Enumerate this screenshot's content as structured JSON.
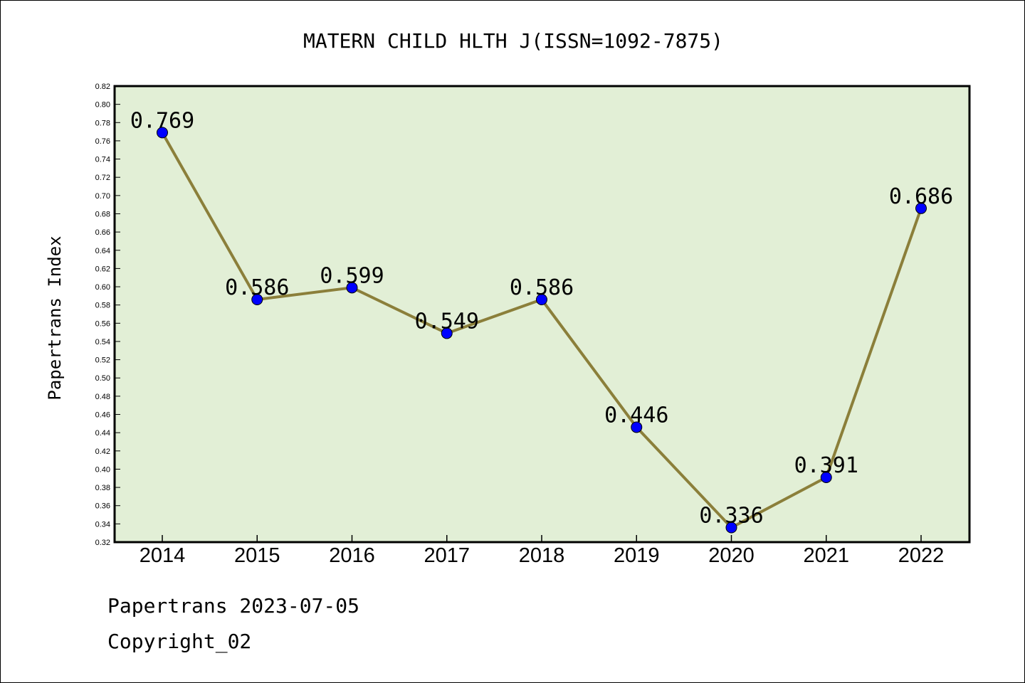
{
  "footer": {
    "line1": "Papertrans 2023-07-05",
    "line2": "Copyright_02"
  },
  "colors": {
    "plot_bg": "#e2efd6",
    "line": "#8b7f3a",
    "marker": "#0000ff"
  },
  "chart_data": {
    "type": "line",
    "title": "MATERN CHILD HLTH J(ISSN=1092-7875)",
    "xlabel": "",
    "ylabel": "Papertrans Index",
    "categories": [
      "2014",
      "2015",
      "2016",
      "2017",
      "2018",
      "2019",
      "2020",
      "2021",
      "2022"
    ],
    "series": [
      {
        "values": [
          0.769,
          0.586,
          0.599,
          0.549,
          0.586,
          0.446,
          0.336,
          0.391,
          0.686
        ],
        "labels": [
          "0.769",
          "0.586",
          "0.599",
          "0.549",
          "0.586",
          "0.446",
          "0.336",
          "0.391",
          "0.686"
        ]
      }
    ],
    "ylim": [
      0.32,
      0.82
    ],
    "ytick_step": 0.02,
    "grid": false,
    "legend": "none"
  }
}
